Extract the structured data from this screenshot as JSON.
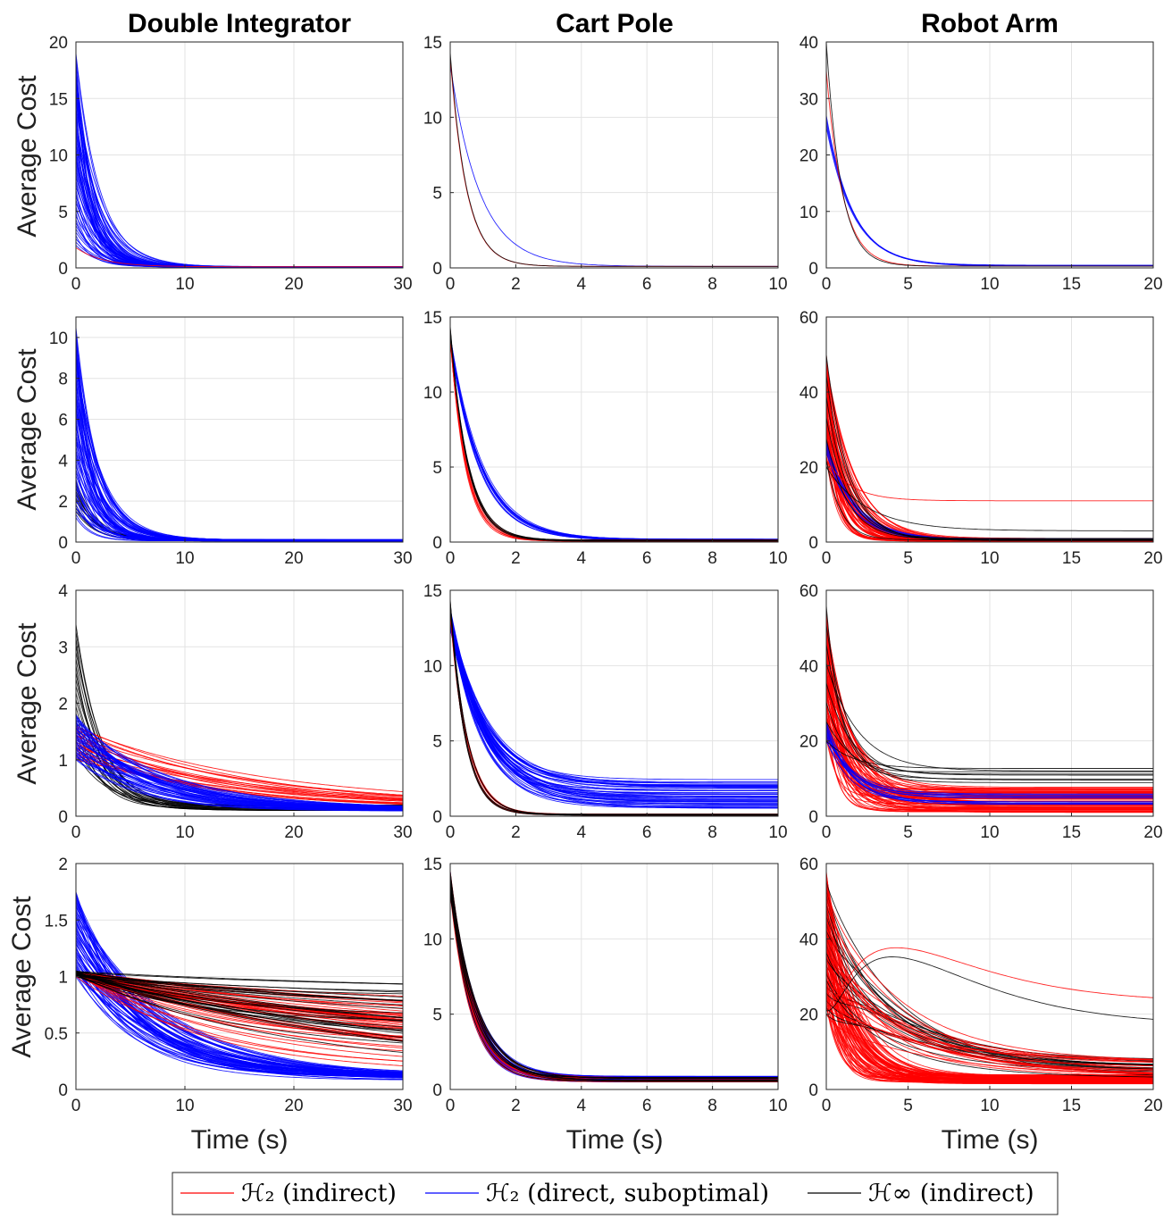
{
  "columns": [
    "Double Integrator",
    "Cart Pole",
    "Robot Arm"
  ],
  "ylabel": "Average Cost",
  "xlabel": "Time (s)",
  "legend": {
    "placement": "bottom-center",
    "entries": [
      {
        "label": "ℋ₂ (indirect)",
        "color": "#ff0000"
      },
      {
        "label": "ℋ₂ (direct, suboptimal)",
        "color": "#0000ff"
      },
      {
        "label": "ℋ∞ (indirect)",
        "color": "#000000"
      }
    ]
  },
  "colors": {
    "h2_indirect": "#ff0000",
    "h2_direct": "#0000ff",
    "hinf_indirect": "#000000"
  },
  "chart_data": [
    {
      "type": "line",
      "row": 1,
      "col": 1,
      "xlim": [
        0,
        30
      ],
      "ylim": [
        0,
        20
      ],
      "xticks": [
        0,
        10,
        20,
        30
      ],
      "yticks": [
        0,
        5,
        10,
        15,
        20
      ],
      "grid": true,
      "series": [
        {
          "color": "#0000ff",
          "count": 60,
          "y0": [
            2,
            19
          ],
          "tau": [
            1.2,
            2.4
          ],
          "yinf": [
            0.05,
            0.12
          ]
        },
        {
          "color": "#ff0000",
          "count": 1,
          "y0": [
            1.8,
            1.8
          ],
          "tau": [
            2.5,
            2.5
          ],
          "yinf": [
            0.1,
            0.1
          ]
        }
      ]
    },
    {
      "type": "line",
      "row": 1,
      "col": 2,
      "xlim": [
        0,
        10
      ],
      "ylim": [
        0,
        15
      ],
      "xticks": [
        0,
        2,
        4,
        6,
        8,
        10
      ],
      "yticks": [
        0,
        5,
        10,
        15
      ],
      "grid": true,
      "series": [
        {
          "color": "#0000ff",
          "count": 1,
          "y0": [
            13.5,
            13.5
          ],
          "tau": [
            0.9,
            0.9
          ],
          "yinf": [
            0.1,
            0.1
          ]
        },
        {
          "color": "#ff0000",
          "count": 1,
          "y0": [
            14,
            14
          ],
          "tau": [
            0.5,
            0.5
          ],
          "yinf": [
            0.1,
            0.1
          ]
        },
        {
          "color": "#000000",
          "count": 1,
          "y0": [
            14.3,
            14.3
          ],
          "tau": [
            0.5,
            0.5
          ],
          "yinf": [
            0.1,
            0.1
          ]
        }
      ]
    },
    {
      "type": "line",
      "row": 1,
      "col": 3,
      "xlim": [
        0,
        20
      ],
      "ylim": [
        0,
        40
      ],
      "xticks": [
        0,
        5,
        10,
        15,
        20
      ],
      "yticks": [
        0,
        10,
        20,
        30,
        40
      ],
      "grid": true,
      "series": [
        {
          "color": "#0000ff",
          "count": 4,
          "y0": [
            25,
            27
          ],
          "tau": [
            1.5,
            1.7
          ],
          "yinf": [
            0.3,
            0.5
          ]
        },
        {
          "color": "#ff0000",
          "count": 1,
          "y0": [
            35,
            35
          ],
          "tau": [
            1,
            1
          ],
          "yinf": [
            0.3,
            0.3
          ]
        },
        {
          "color": "#000000",
          "count": 1,
          "y0": [
            40,
            40
          ],
          "tau": [
            0.9,
            0.9
          ],
          "yinf": [
            0.3,
            0.3
          ]
        }
      ]
    },
    {
      "type": "line",
      "row": 2,
      "col": 1,
      "xlim": [
        0,
        30
      ],
      "ylim": [
        0,
        11
      ],
      "xticks": [
        0,
        10,
        20,
        30
      ],
      "yticks": [
        0,
        2,
        4,
        6,
        8,
        10
      ],
      "grid": true,
      "series": [
        {
          "color": "#000000",
          "count": 10,
          "y0": [
            1.5,
            3
          ],
          "tau": [
            1.5,
            2.2
          ],
          "yinf": [
            0.05,
            0.1
          ]
        },
        {
          "color": "#0000ff",
          "count": 60,
          "y0": [
            1.2,
            10.5
          ],
          "tau": [
            1.2,
            2.6
          ],
          "yinf": [
            0.05,
            0.12
          ]
        }
      ]
    },
    {
      "type": "line",
      "row": 2,
      "col": 2,
      "xlim": [
        0,
        10
      ],
      "ylim": [
        0,
        15
      ],
      "xticks": [
        0,
        2,
        4,
        6,
        8,
        10
      ],
      "yticks": [
        0,
        5,
        10,
        15
      ],
      "grid": true,
      "series": [
        {
          "color": "#0000ff",
          "count": 12,
          "y0": [
            13.2,
            13.8
          ],
          "tau": [
            0.85,
            1
          ],
          "yinf": [
            0.1,
            0.2
          ]
        },
        {
          "color": "#ff0000",
          "count": 8,
          "y0": [
            13.5,
            14.2
          ],
          "tau": [
            0.45,
            0.55
          ],
          "yinf": [
            0.05,
            0.15
          ]
        },
        {
          "color": "#000000",
          "count": 5,
          "y0": [
            14,
            14.4
          ],
          "tau": [
            0.45,
            0.55
          ],
          "yinf": [
            0.05,
            0.15
          ]
        }
      ]
    },
    {
      "type": "line",
      "row": 2,
      "col": 3,
      "xlim": [
        0,
        20
      ],
      "ylim": [
        0,
        60
      ],
      "xticks": [
        0,
        5,
        10,
        15,
        20
      ],
      "yticks": [
        0,
        20,
        40,
        60
      ],
      "grid": true,
      "series": [
        {
          "color": "#ff0000",
          "count": 60,
          "y0": [
            22,
            50
          ],
          "tau": [
            0.6,
            1.8
          ],
          "yinf": [
            0.2,
            1
          ]
        },
        {
          "color": "#0000ff",
          "count": 6,
          "y0": [
            24,
            27
          ],
          "tau": [
            1.5,
            1.8
          ],
          "yinf": [
            0.5,
            1
          ]
        },
        {
          "color": "#000000",
          "count": 6,
          "y0": [
            22,
            50
          ],
          "tau": [
            0.7,
            1.6
          ],
          "yinf": [
            0.3,
            1
          ]
        },
        {
          "color": "#ff0000",
          "count": 1,
          "y0": [
            22,
            22
          ],
          "tau": [
            1.5,
            1.5
          ],
          "yinf": [
            11,
            11
          ]
        },
        {
          "color": "#000000",
          "count": 1,
          "y0": [
            20,
            20
          ],
          "tau": [
            2.5,
            2.5
          ],
          "yinf": [
            3,
            3
          ]
        }
      ]
    },
    {
      "type": "line",
      "row": 3,
      "col": 1,
      "xlim": [
        0,
        30
      ],
      "ylim": [
        0,
        4
      ],
      "xticks": [
        0,
        10,
        20,
        30
      ],
      "yticks": [
        0,
        1,
        2,
        3,
        4
      ],
      "grid": true,
      "series": [
        {
          "color": "#000000",
          "count": 20,
          "y0": [
            1.1,
            3.4
          ],
          "tau": [
            2,
            3
          ],
          "yinf": [
            0.1,
            0.2
          ]
        },
        {
          "color": "#ff0000",
          "count": 20,
          "y0": [
            1,
            1.6
          ],
          "tau": [
            9,
            18
          ],
          "yinf": [
            0.1,
            0.2
          ]
        },
        {
          "color": "#0000ff",
          "count": 40,
          "y0": [
            1,
            1.8
          ],
          "tau": [
            5,
            9
          ],
          "yinf": [
            0.08,
            0.14
          ]
        }
      ]
    },
    {
      "type": "line",
      "row": 3,
      "col": 2,
      "xlim": [
        0,
        10
      ],
      "ylim": [
        0,
        15
      ],
      "xticks": [
        0,
        2,
        4,
        6,
        8,
        10
      ],
      "yticks": [
        0,
        5,
        10,
        15
      ],
      "grid": true,
      "series": [
        {
          "color": "#0000ff",
          "count": 45,
          "y0": [
            12.5,
            13.8
          ],
          "tau": [
            0.9,
            1.2
          ],
          "yinf": [
            0.5,
            2.5
          ]
        },
        {
          "color": "#ff0000",
          "count": 8,
          "y0": [
            13.5,
            14.2
          ],
          "tau": [
            0.45,
            0.55
          ],
          "yinf": [
            0.05,
            0.15
          ]
        },
        {
          "color": "#000000",
          "count": 5,
          "y0": [
            14,
            14.4
          ],
          "tau": [
            0.45,
            0.55
          ],
          "yinf": [
            0.05,
            0.15
          ]
        }
      ]
    },
    {
      "type": "line",
      "row": 3,
      "col": 3,
      "xlim": [
        0,
        20
      ],
      "ylim": [
        0,
        60
      ],
      "xticks": [
        0,
        5,
        10,
        15,
        20
      ],
      "yticks": [
        0,
        20,
        40,
        60
      ],
      "grid": true,
      "series": [
        {
          "color": "#ff0000",
          "count": 70,
          "y0": [
            20,
            55
          ],
          "tau": [
            0.6,
            2
          ],
          "yinf": [
            1,
            8
          ]
        },
        {
          "color": "#0000ff",
          "count": 12,
          "y0": [
            20,
            25
          ],
          "tau": [
            1.2,
            1.8
          ],
          "yinf": [
            3,
            6
          ]
        },
        {
          "color": "#000000",
          "count": 8,
          "y0": [
            20,
            56
          ],
          "tau": [
            0.8,
            2
          ],
          "yinf": [
            8,
            13
          ]
        }
      ]
    },
    {
      "type": "line",
      "row": 4,
      "col": 1,
      "xlim": [
        0,
        30
      ],
      "ylim": [
        0,
        2
      ],
      "xticks": [
        0,
        10,
        20,
        30
      ],
      "yticks": [
        0,
        0.5,
        1,
        1.5,
        2
      ],
      "grid": true,
      "series": [
        {
          "color": "#0000ff",
          "count": 60,
          "y0": [
            1,
            1.75
          ],
          "tau": [
            5,
            9
          ],
          "yinf": [
            0.08,
            0.14
          ]
        },
        {
          "color": "#ff0000",
          "count": 50,
          "y0": [
            1,
            1.05
          ],
          "tau": [
            10,
            40
          ],
          "yinf": [
            0.1,
            0.7
          ]
        },
        {
          "color": "#000000",
          "count": 30,
          "y0": [
            1,
            1.05
          ],
          "tau": [
            10,
            40
          ],
          "yinf": [
            0.1,
            0.9
          ]
        }
      ]
    },
    {
      "type": "line",
      "row": 4,
      "col": 2,
      "xlim": [
        0,
        10
      ],
      "ylim": [
        0,
        15
      ],
      "xticks": [
        0,
        2,
        4,
        6,
        8,
        10
      ],
      "yticks": [
        0,
        5,
        10,
        15
      ],
      "grid": true,
      "series": [
        {
          "color": "#0000ff",
          "count": 30,
          "y0": [
            13,
            14.5
          ],
          "tau": [
            0.6,
            0.8
          ],
          "yinf": [
            0.5,
            0.9
          ]
        },
        {
          "color": "#ff0000",
          "count": 10,
          "y0": [
            13,
            14.5
          ],
          "tau": [
            0.6,
            0.8
          ],
          "yinf": [
            0.5,
            0.8
          ]
        },
        {
          "color": "#000000",
          "count": 10,
          "y0": [
            13,
            14.5
          ],
          "tau": [
            0.6,
            0.8
          ],
          "yinf": [
            0.5,
            0.8
          ]
        }
      ]
    },
    {
      "type": "line",
      "row": 4,
      "col": 3,
      "xlim": [
        0,
        20
      ],
      "ylim": [
        0,
        60
      ],
      "xticks": [
        0,
        5,
        10,
        15,
        20
      ],
      "yticks": [
        0,
        20,
        40,
        60
      ],
      "grid": true,
      "series": [
        {
          "color": "#ff0000",
          "count": 70,
          "y0": [
            22,
            58
          ],
          "tau": [
            0.6,
            2
          ],
          "yinf": [
            1.5,
            4
          ]
        },
        {
          "color": "#000000",
          "count": 20,
          "y0": [
            20,
            55
          ],
          "tau": [
            2,
            4
          ],
          "yinf": [
            3,
            8
          ],
          "bump": [
            3,
            7
          ]
        },
        {
          "color": "#ff0000",
          "count": 20,
          "y0": [
            20,
            55
          ],
          "tau": [
            2,
            4
          ],
          "yinf": [
            3,
            8
          ],
          "bump": [
            3,
            7
          ]
        },
        {
          "color": "#ff0000",
          "count": 1,
          "y0": [
            22,
            22
          ],
          "tau": [
            2,
            2
          ],
          "yinf": [
            23,
            23
          ],
          "bump": [
            15,
            15
          ]
        },
        {
          "color": "#000000",
          "count": 1,
          "y0": [
            21,
            21
          ],
          "tau": [
            2,
            2
          ],
          "yinf": [
            17,
            17
          ],
          "bump": [
            18,
            18
          ]
        }
      ]
    }
  ]
}
